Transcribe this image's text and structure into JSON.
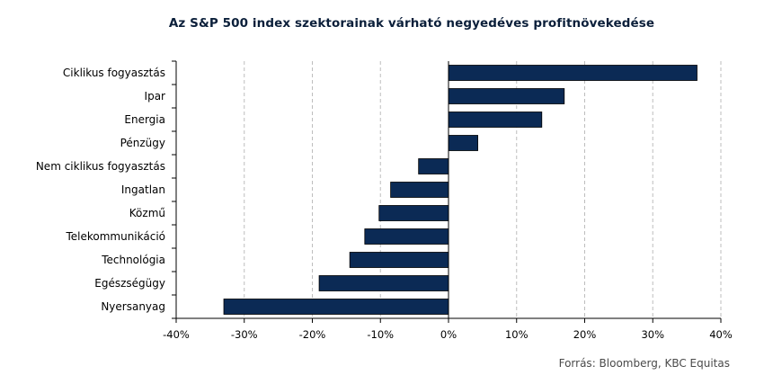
{
  "chart_data": {
    "type": "bar",
    "orientation": "horizontal",
    "title": "Az S&P 500 index szektorainak várható negyedéves profitnövekedése",
    "categories": [
      "Ciklikus fogyasztás",
      "Ipar",
      "Energia",
      "Pénzügy",
      "Nem ciklikus fogyasztás",
      "Ingatlan",
      "Közmű",
      "Telekommunikáció",
      "Technológia",
      "Egészségügy",
      "Nyersanyag"
    ],
    "values": [
      36.5,
      17.0,
      13.7,
      4.3,
      -4.4,
      -8.5,
      -10.2,
      -12.3,
      -14.5,
      -19.0,
      -33.0
    ],
    "xlim": [
      -40,
      40
    ],
    "xticks": [
      -40,
      -30,
      -20,
      -10,
      0,
      10,
      20,
      30,
      40
    ],
    "tick_format": "percent",
    "grid": "vertical-dashed",
    "bar_color": "#0b2a55",
    "source": "Forrás: Bloomberg,  KBC Equitas"
  }
}
